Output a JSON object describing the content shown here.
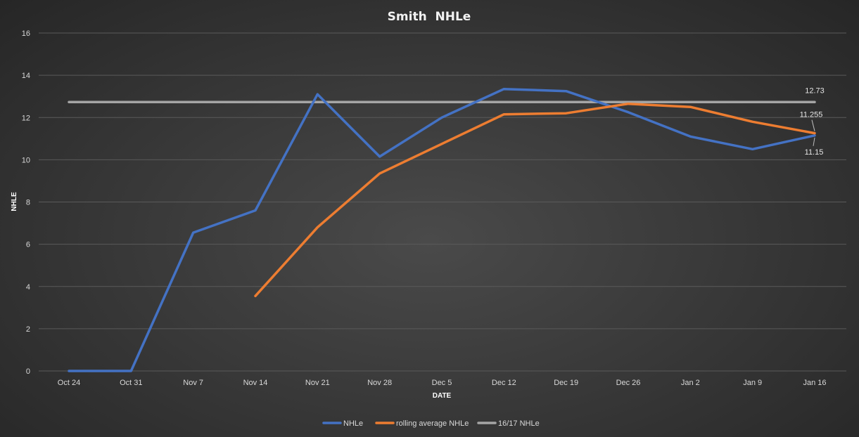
{
  "chart_data": {
    "type": "line",
    "title": "Smith  NHLe",
    "xlabel": "DATE",
    "ylabel": "NHLE",
    "ylim": [
      0,
      16
    ],
    "yticks": [
      0,
      2,
      4,
      6,
      8,
      10,
      12,
      14,
      16
    ],
    "categories": [
      "Oct 24",
      "Oct 31",
      "Nov 7",
      "Nov 14",
      "Nov 21",
      "Nov 28",
      "Dec 5",
      "Dec 12",
      "Dec 19",
      "Dec 26",
      "Jan 2",
      "Jan 9",
      "Jan 16"
    ],
    "grid": true,
    "legend": "bottom",
    "series": [
      {
        "name": "NHLe",
        "color": "#4472c4",
        "values": [
          0,
          0,
          6.55,
          7.6,
          13.1,
          10.15,
          12.0,
          13.35,
          13.25,
          12.25,
          11.1,
          10.5,
          11.15
        ]
      },
      {
        "name": "rolling average NHLe",
        "color": "#ed7d31",
        "values": [
          null,
          null,
          null,
          3.55,
          6.8,
          9.35,
          10.75,
          12.15,
          12.2,
          12.65,
          12.5,
          11.8,
          11.255
        ]
      },
      {
        "name": "16/17 NHLe",
        "color": "#a5a5a5",
        "values": [
          12.73,
          12.73,
          12.73,
          12.73,
          12.73,
          12.73,
          12.73,
          12.73,
          12.73,
          12.73,
          12.73,
          12.73,
          12.73
        ]
      }
    ],
    "data_labels": [
      "12.73",
      "11.255",
      "11.15"
    ]
  }
}
